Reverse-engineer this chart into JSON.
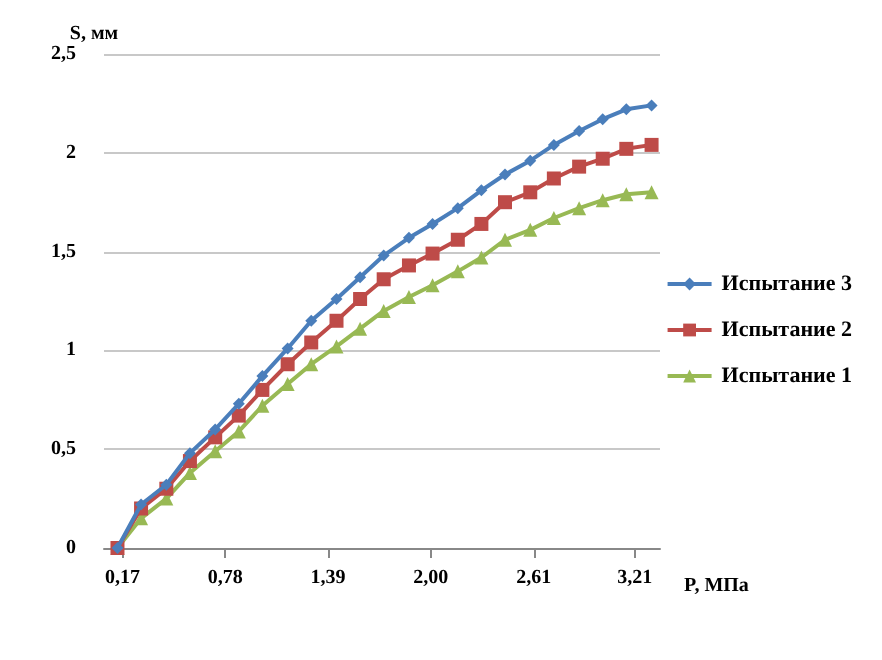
{
  "chart_data": {
    "type": "line",
    "xlabel": "P, МПа",
    "ylabel": "S, мм",
    "x": [
      0.14,
      0.28,
      0.43,
      0.57,
      0.72,
      0.86,
      1.0,
      1.15,
      1.29,
      1.44,
      1.58,
      1.72,
      1.87,
      2.01,
      2.16,
      2.3,
      2.44,
      2.59,
      2.73,
      2.88,
      3.02,
      3.16,
      3.31
    ],
    "series": [
      {
        "name": "Испытание 3",
        "color": "#4a7ebb",
        "marker": "diamond",
        "values": [
          0,
          0.22,
          0.32,
          0.48,
          0.6,
          0.73,
          0.87,
          1.01,
          1.15,
          1.26,
          1.37,
          1.48,
          1.57,
          1.64,
          1.72,
          1.81,
          1.89,
          1.96,
          2.04,
          2.11,
          2.17,
          2.22,
          2.24
        ]
      },
      {
        "name": "Испытание 2",
        "color": "#be4b48",
        "marker": "square",
        "values": [
          0,
          0.2,
          0.3,
          0.44,
          0.56,
          0.67,
          0.8,
          0.93,
          1.04,
          1.15,
          1.26,
          1.36,
          1.43,
          1.49,
          1.56,
          1.64,
          1.75,
          1.8,
          1.87,
          1.93,
          1.97,
          2.02,
          2.04
        ]
      },
      {
        "name": "Испытание 1",
        "color": "#98b954",
        "marker": "triangle",
        "values": [
          0,
          0.15,
          0.25,
          0.38,
          0.49,
          0.59,
          0.72,
          0.83,
          0.93,
          1.02,
          1.11,
          1.2,
          1.27,
          1.33,
          1.4,
          1.47,
          1.56,
          1.61,
          1.67,
          1.72,
          1.76,
          1.79,
          1.8
        ]
      }
    ],
    "xlim": [
      0.06,
      3.36
    ],
    "xticks": [
      {
        "value": 0.17,
        "label": "0,17"
      },
      {
        "value": 0.78,
        "label": "0,78"
      },
      {
        "value": 1.39,
        "label": "1,39"
      },
      {
        "value": 2.0,
        "label": "2,00"
      },
      {
        "value": 2.61,
        "label": "2,61"
      },
      {
        "value": 3.21,
        "label": "3,21"
      }
    ],
    "ylim": [
      0,
      2.5
    ],
    "yticks": [
      {
        "value": 0,
        "label": "0"
      },
      {
        "value": 0.5,
        "label": "0,5"
      },
      {
        "value": 1,
        "label": "1"
      },
      {
        "value": 1.5,
        "label": "1,5"
      },
      {
        "value": 2,
        "label": "2"
      },
      {
        "value": 2.5,
        "label": "2,5"
      }
    ],
    "grid": "y",
    "legend": "right",
    "line_style": "solid"
  }
}
